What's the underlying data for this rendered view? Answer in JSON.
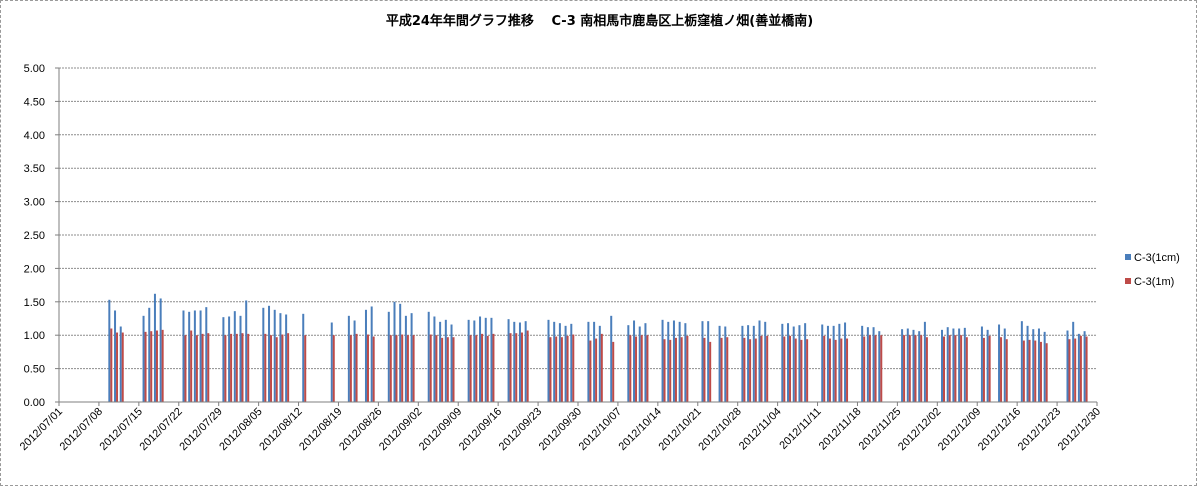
{
  "chart_data": {
    "type": "bar",
    "title": "平成24年年間グラフ推移　 C-3 南相馬市鹿島区上栃窪植ノ畑(善並橋南)",
    "xlabel": "",
    "ylabel": "",
    "ylim": [
      0,
      5
    ],
    "yticks": [
      "0.00",
      "0.50",
      "1.00",
      "1.50",
      "2.00",
      "2.50",
      "3.00",
      "3.50",
      "4.00",
      "4.50",
      "5.00"
    ],
    "xlim": [
      "2012/07/01",
      "2012/12/30"
    ],
    "xticks": [
      "2012/07/01",
      "2012/07/08",
      "2012/07/15",
      "2012/07/22",
      "2012/07/29",
      "2012/08/05",
      "2012/08/12",
      "2012/08/19",
      "2012/08/26",
      "2012/09/02",
      "2012/09/09",
      "2012/09/16",
      "2012/09/23",
      "2012/09/30",
      "2012/10/07",
      "2012/10/14",
      "2012/10/21",
      "2012/10/28",
      "2012/11/04",
      "2012/11/11",
      "2012/11/18",
      "2012/11/25",
      "2012/12/02",
      "2012/12/09",
      "2012/12/16",
      "2012/12/23",
      "2012/12/30"
    ],
    "grid": true,
    "legend_position": "right",
    "series": [
      {
        "name": "C-3(1cm)",
        "color": "#4a7ebb",
        "points": [
          [
            "2012/07/10",
            1.53
          ],
          [
            "2012/07/11",
            1.37
          ],
          [
            "2012/07/12",
            1.13
          ],
          [
            "2012/07/16",
            1.29
          ],
          [
            "2012/07/17",
            1.41
          ],
          [
            "2012/07/18",
            1.62
          ],
          [
            "2012/07/19",
            1.55
          ],
          [
            "2012/07/23",
            1.37
          ],
          [
            "2012/07/24",
            1.35
          ],
          [
            "2012/07/25",
            1.37
          ],
          [
            "2012/07/26",
            1.37
          ],
          [
            "2012/07/27",
            1.42
          ],
          [
            "2012/07/30",
            1.27
          ],
          [
            "2012/07/31",
            1.28
          ],
          [
            "2012/08/01",
            1.36
          ],
          [
            "2012/08/02",
            1.29
          ],
          [
            "2012/08/03",
            1.52
          ],
          [
            "2012/08/06",
            1.41
          ],
          [
            "2012/08/07",
            1.44
          ],
          [
            "2012/08/08",
            1.38
          ],
          [
            "2012/08/09",
            1.33
          ],
          [
            "2012/08/10",
            1.31
          ],
          [
            "2012/08/13",
            1.32
          ],
          [
            "2012/08/18",
            1.19
          ],
          [
            "2012/08/21",
            1.29
          ],
          [
            "2012/08/22",
            1.22
          ],
          [
            "2012/08/24",
            1.38
          ],
          [
            "2012/08/25",
            1.43
          ],
          [
            "2012/08/28",
            1.35
          ],
          [
            "2012/08/29",
            1.5
          ],
          [
            "2012/08/30",
            1.47
          ],
          [
            "2012/08/31",
            1.29
          ],
          [
            "2012/09/01",
            1.33
          ],
          [
            "2012/09/04",
            1.35
          ],
          [
            "2012/09/05",
            1.28
          ],
          [
            "2012/09/06",
            1.2
          ],
          [
            "2012/09/07",
            1.23
          ],
          [
            "2012/09/08",
            1.16
          ],
          [
            "2012/09/11",
            1.23
          ],
          [
            "2012/09/12",
            1.22
          ],
          [
            "2012/09/13",
            1.28
          ],
          [
            "2012/09/14",
            1.26
          ],
          [
            "2012/09/15",
            1.26
          ],
          [
            "2012/09/18",
            1.24
          ],
          [
            "2012/09/19",
            1.2
          ],
          [
            "2012/09/20",
            1.19
          ],
          [
            "2012/09/21",
            1.21
          ],
          [
            "2012/09/25",
            1.23
          ],
          [
            "2012/09/26",
            1.2
          ],
          [
            "2012/09/27",
            1.18
          ],
          [
            "2012/09/28",
            1.14
          ],
          [
            "2012/09/29",
            1.17
          ],
          [
            "2012/10/02",
            1.2
          ],
          [
            "2012/10/03",
            1.2
          ],
          [
            "2012/10/04",
            1.14
          ],
          [
            "2012/10/06",
            1.29
          ],
          [
            "2012/10/09",
            1.15
          ],
          [
            "2012/10/10",
            1.22
          ],
          [
            "2012/10/11",
            1.13
          ],
          [
            "2012/10/12",
            1.18
          ],
          [
            "2012/10/15",
            1.23
          ],
          [
            "2012/10/16",
            1.2
          ],
          [
            "2012/10/17",
            1.22
          ],
          [
            "2012/10/18",
            1.2
          ],
          [
            "2012/10/19",
            1.18
          ],
          [
            "2012/10/22",
            1.21
          ],
          [
            "2012/10/23",
            1.21
          ],
          [
            "2012/10/25",
            1.14
          ],
          [
            "2012/10/26",
            1.13
          ],
          [
            "2012/10/29",
            1.14
          ],
          [
            "2012/10/30",
            1.15
          ],
          [
            "2012/10/31",
            1.14
          ],
          [
            "2012/11/01",
            1.22
          ],
          [
            "2012/11/02",
            1.2
          ],
          [
            "2012/11/05",
            1.17
          ],
          [
            "2012/11/06",
            1.18
          ],
          [
            "2012/11/07",
            1.13
          ],
          [
            "2012/11/08",
            1.15
          ],
          [
            "2012/11/09",
            1.18
          ],
          [
            "2012/11/12",
            1.16
          ],
          [
            "2012/11/13",
            1.14
          ],
          [
            "2012/11/14",
            1.14
          ],
          [
            "2012/11/15",
            1.17
          ],
          [
            "2012/11/16",
            1.19
          ],
          [
            "2012/11/19",
            1.14
          ],
          [
            "2012/11/20",
            1.12
          ],
          [
            "2012/11/21",
            1.12
          ],
          [
            "2012/11/22",
            1.06
          ],
          [
            "2012/11/26",
            1.09
          ],
          [
            "2012/11/27",
            1.1
          ],
          [
            "2012/11/28",
            1.08
          ],
          [
            "2012/11/29",
            1.06
          ],
          [
            "2012/11/30",
            1.2
          ],
          [
            "2012/12/03",
            1.08
          ],
          [
            "2012/12/04",
            1.12
          ],
          [
            "2012/12/05",
            1.1
          ],
          [
            "2012/12/06",
            1.1
          ],
          [
            "2012/12/07",
            1.11
          ],
          [
            "2012/12/10",
            1.13
          ],
          [
            "2012/12/11",
            1.08
          ],
          [
            "2012/12/13",
            1.16
          ],
          [
            "2012/12/14",
            1.1
          ],
          [
            "2012/12/17",
            1.21
          ],
          [
            "2012/12/18",
            1.14
          ],
          [
            "2012/12/19",
            1.09
          ],
          [
            "2012/12/20",
            1.1
          ],
          [
            "2012/12/21",
            1.05
          ],
          [
            "2012/12/25",
            1.07
          ],
          [
            "2012/12/26",
            1.2
          ],
          [
            "2012/12/27",
            1.02
          ],
          [
            "2012/12/28",
            1.06
          ]
        ]
      },
      {
        "name": "C-3(1m)",
        "color": "#be4b48",
        "points": [
          [
            "2012/07/10",
            1.1
          ],
          [
            "2012/07/11",
            1.04
          ],
          [
            "2012/07/12",
            1.04
          ],
          [
            "2012/07/16",
            1.05
          ],
          [
            "2012/07/17",
            1.06
          ],
          [
            "2012/07/18",
            1.07
          ],
          [
            "2012/07/19",
            1.08
          ],
          [
            "2012/07/23",
            1.0
          ],
          [
            "2012/07/24",
            1.07
          ],
          [
            "2012/07/25",
            1.0
          ],
          [
            "2012/07/26",
            1.02
          ],
          [
            "2012/07/27",
            1.03
          ],
          [
            "2012/07/30",
            1.0
          ],
          [
            "2012/07/31",
            1.02
          ],
          [
            "2012/08/01",
            1.02
          ],
          [
            "2012/08/02",
            1.03
          ],
          [
            "2012/08/03",
            1.02
          ],
          [
            "2012/08/06",
            1.02
          ],
          [
            "2012/08/07",
            1.0
          ],
          [
            "2012/08/08",
            0.97
          ],
          [
            "2012/08/09",
            1.01
          ],
          [
            "2012/08/10",
            1.03
          ],
          [
            "2012/08/13",
            1.0
          ],
          [
            "2012/08/18",
            1.0
          ],
          [
            "2012/08/21",
            1.0
          ],
          [
            "2012/08/22",
            1.02
          ],
          [
            "2012/08/24",
            1.01
          ],
          [
            "2012/08/25",
            0.98
          ],
          [
            "2012/08/28",
            1.0
          ],
          [
            "2012/08/29",
            1.0
          ],
          [
            "2012/08/30",
            1.01
          ],
          [
            "2012/08/31",
            1.0
          ],
          [
            "2012/09/01",
            1.0
          ],
          [
            "2012/09/04",
            1.01
          ],
          [
            "2012/09/05",
            1.0
          ],
          [
            "2012/09/06",
            0.96
          ],
          [
            "2012/09/07",
            0.97
          ],
          [
            "2012/09/08",
            0.97
          ],
          [
            "2012/09/11",
            1.0
          ],
          [
            "2012/09/12",
            1.0
          ],
          [
            "2012/09/13",
            1.02
          ],
          [
            "2012/09/14",
            0.99
          ],
          [
            "2012/09/15",
            1.02
          ],
          [
            "2012/09/18",
            1.03
          ],
          [
            "2012/09/19",
            1.03
          ],
          [
            "2012/09/20",
            1.04
          ],
          [
            "2012/09/21",
            1.07
          ],
          [
            "2012/09/25",
            0.97
          ],
          [
            "2012/09/26",
            0.98
          ],
          [
            "2012/09/27",
            0.97
          ],
          [
            "2012/09/28",
            0.99
          ],
          [
            "2012/09/29",
            1.01
          ],
          [
            "2012/10/02",
            0.92
          ],
          [
            "2012/10/03",
            0.95
          ],
          [
            "2012/10/04",
            1.02
          ],
          [
            "2012/10/06",
            0.9
          ],
          [
            "2012/10/09",
            1.0
          ],
          [
            "2012/10/10",
            0.98
          ],
          [
            "2012/10/11",
            1.0
          ],
          [
            "2012/10/12",
            1.0
          ],
          [
            "2012/10/15",
            0.94
          ],
          [
            "2012/10/16",
            0.93
          ],
          [
            "2012/10/17",
            0.96
          ],
          [
            "2012/10/18",
            0.97
          ],
          [
            "2012/10/19",
            0.99
          ],
          [
            "2012/10/22",
            0.96
          ],
          [
            "2012/10/23",
            0.9
          ],
          [
            "2012/10/25",
            0.96
          ],
          [
            "2012/10/26",
            0.97
          ],
          [
            "2012/10/29",
            0.96
          ],
          [
            "2012/10/30",
            0.94
          ],
          [
            "2012/10/31",
            0.95
          ],
          [
            "2012/11/01",
            0.99
          ],
          [
            "2012/11/02",
            0.99
          ],
          [
            "2012/11/05",
            0.98
          ],
          [
            "2012/11/06",
            0.99
          ],
          [
            "2012/11/07",
            0.95
          ],
          [
            "2012/11/08",
            0.93
          ],
          [
            "2012/11/09",
            0.94
          ],
          [
            "2012/11/12",
            0.99
          ],
          [
            "2012/11/13",
            0.95
          ],
          [
            "2012/11/14",
            0.93
          ],
          [
            "2012/11/15",
            0.95
          ],
          [
            "2012/11/16",
            0.95
          ],
          [
            "2012/11/19",
            0.98
          ],
          [
            "2012/11/20",
            1.0
          ],
          [
            "2012/11/21",
            1.0
          ],
          [
            "2012/11/22",
            1.0
          ],
          [
            "2012/11/26",
            1.0
          ],
          [
            "2012/11/27",
            1.0
          ],
          [
            "2012/11/28",
            1.0
          ],
          [
            "2012/11/29",
            1.0
          ],
          [
            "2012/11/30",
            0.97
          ],
          [
            "2012/12/03",
            0.98
          ],
          [
            "2012/12/04",
            1.0
          ],
          [
            "2012/12/05",
            1.0
          ],
          [
            "2012/12/06",
            1.0
          ],
          [
            "2012/12/07",
            0.97
          ],
          [
            "2012/12/10",
            0.96
          ],
          [
            "2012/12/11",
            0.99
          ],
          [
            "2012/12/13",
            0.97
          ],
          [
            "2012/12/14",
            0.94
          ],
          [
            "2012/12/17",
            0.92
          ],
          [
            "2012/12/18",
            0.93
          ],
          [
            "2012/12/19",
            0.92
          ],
          [
            "2012/12/20",
            0.9
          ],
          [
            "2012/12/21",
            0.88
          ],
          [
            "2012/12/25",
            0.94
          ],
          [
            "2012/12/26",
            0.95
          ],
          [
            "2012/12/27",
            0.99
          ],
          [
            "2012/12/28",
            0.98
          ]
        ]
      }
    ]
  }
}
